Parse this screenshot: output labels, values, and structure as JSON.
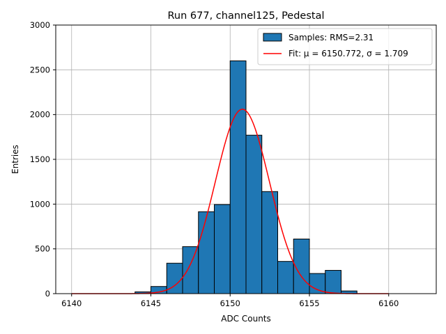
{
  "chart_data": {
    "type": "bar",
    "title": "Run 677, channel125, Pedestal",
    "xlabel": "ADC Counts",
    "ylabel": "Entries",
    "xlim": [
      6139.0,
      6163.0
    ],
    "ylim": [
      0,
      3000
    ],
    "xticks": [
      6140,
      6145,
      6150,
      6155,
      6160
    ],
    "yticks": [
      0,
      500,
      1000,
      1500,
      2000,
      2500,
      3000
    ],
    "grid": true,
    "legend_position": "top-right",
    "bins": [
      {
        "left": 6144,
        "right": 6145,
        "count": 20
      },
      {
        "left": 6145,
        "right": 6146,
        "count": 80
      },
      {
        "left": 6146,
        "right": 6147,
        "count": 340
      },
      {
        "left": 6147,
        "right": 6148,
        "count": 525
      },
      {
        "left": 6148,
        "right": 6149,
        "count": 915
      },
      {
        "left": 6149,
        "right": 6150,
        "count": 995
      },
      {
        "left": 6150,
        "right": 6151,
        "count": 2600
      },
      {
        "left": 6151,
        "right": 6152,
        "count": 1770
      },
      {
        "left": 6152,
        "right": 6153,
        "count": 1140
      },
      {
        "left": 6153,
        "right": 6154,
        "count": 360
      },
      {
        "left": 6154,
        "right": 6155,
        "count": 610
      },
      {
        "left": 6155,
        "right": 6156,
        "count": 225
      },
      {
        "left": 6156,
        "right": 6157,
        "count": 260
      },
      {
        "left": 6157,
        "right": 6158,
        "count": 30
      }
    ],
    "fit": {
      "mu": 6150.772,
      "sigma": 1.709,
      "amplitude": 2060,
      "x_range": [
        6140,
        6160
      ]
    },
    "series": [
      {
        "name": "Samples: RMS=2.31",
        "color": "#1f77b4",
        "kind": "histogram"
      },
      {
        "name": "Fit: μ = 6150.772, σ = 1.709",
        "color": "#ff0000",
        "kind": "line"
      }
    ]
  }
}
